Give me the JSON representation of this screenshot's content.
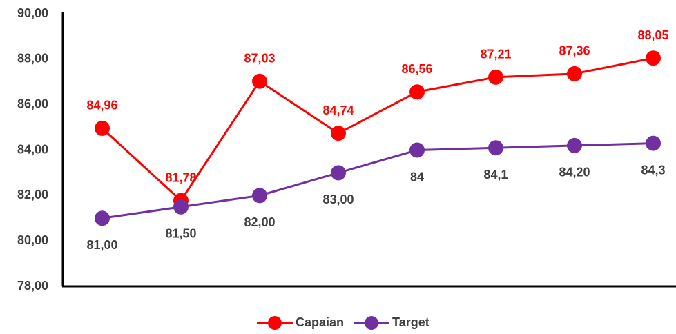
{
  "chart_data": {
    "type": "line",
    "categories": [
      null,
      null,
      null,
      null,
      null,
      null,
      null,
      null
    ],
    "series": [
      {
        "name": "Capaian",
        "color": "#ff0000",
        "values": [
          84.96,
          81.78,
          87.03,
          84.74,
          86.56,
          87.21,
          87.36,
          88.05
        ],
        "value_labels": [
          "84,96",
          "81,78",
          "87,03",
          "84,74",
          "86,56",
          "87,21",
          "87,36",
          "88,05"
        ]
      },
      {
        "name": "Target",
        "color": "#7030a0",
        "values": [
          81,
          81.5,
          82,
          83,
          84,
          84.1,
          84.2,
          84.3
        ],
        "value_labels": [
          "81,00",
          "81,50",
          "82,00",
          "83,00",
          "84",
          "84,1",
          "84,20",
          "84,3"
        ]
      }
    ],
    "ylim": [
      78,
      90
    ],
    "yticks": [
      {
        "value": 78,
        "label": "78,00"
      },
      {
        "value": 80,
        "label": "80,00"
      },
      {
        "value": 82,
        "label": "82,00"
      },
      {
        "value": 84,
        "label": "84,00"
      },
      {
        "value": 86,
        "label": "86,00"
      },
      {
        "value": 88,
        "label": "88,00"
      },
      {
        "value": 90,
        "label": "90,00"
      }
    ],
    "grid": false,
    "legend": "bottom"
  }
}
